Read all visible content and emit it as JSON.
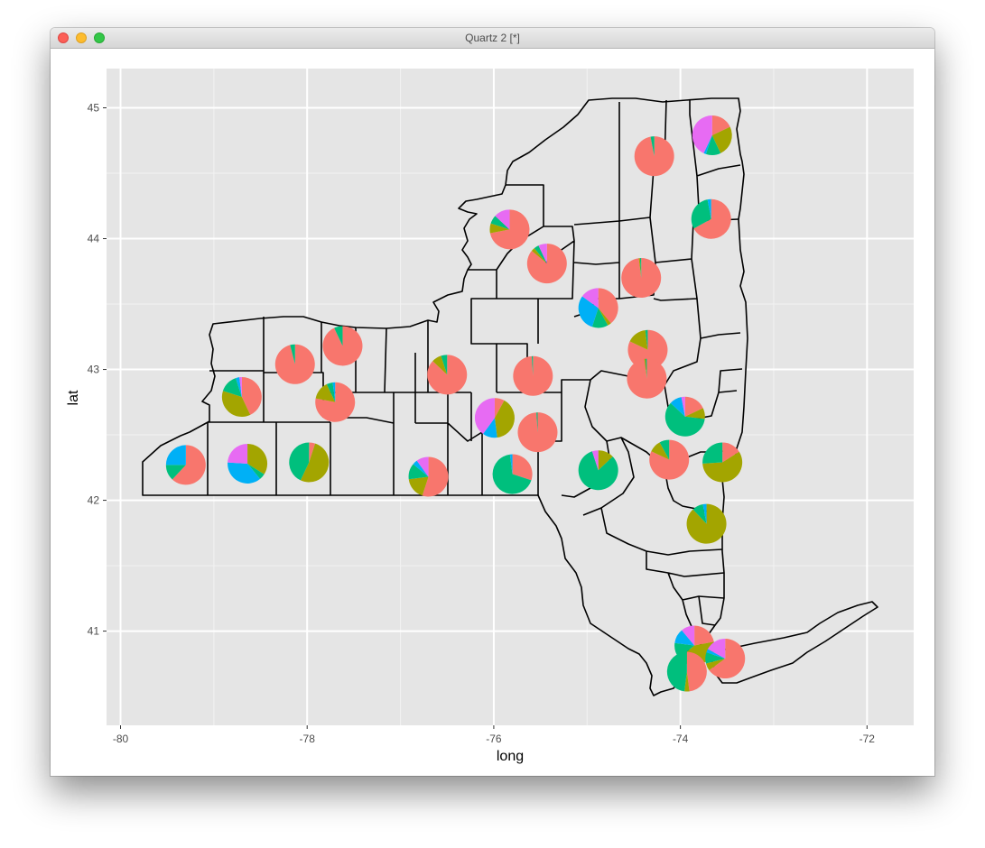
{
  "window": {
    "title": "Quartz 2 [*]"
  },
  "colors": {
    "panel": "#e5e5e5",
    "grid_major": "#ffffff",
    "grid_minor": "#f2f2f2",
    "outline": "#000000"
  },
  "chart_data": {
    "type": "pie",
    "subtype": "pie charts over county map",
    "xlabel": "long",
    "ylabel": "lat",
    "xlim": [
      -80.15,
      -71.5
    ],
    "ylim": [
      40.28,
      45.3
    ],
    "xticks": [
      -80,
      -78,
      -76,
      -74,
      -72
    ],
    "yticks": [
      41,
      42,
      43,
      44,
      45
    ],
    "grid": true,
    "legend": "none",
    "slice_colors": [
      "#F8766D",
      "#A3A500",
      "#00BF7D",
      "#00B0F6",
      "#E76BF3"
    ],
    "pies": [
      {
        "lon": -79.3,
        "lat": 42.27,
        "values": [
          0.62,
          0.0,
          0.13,
          0.25,
          0.0
        ]
      },
      {
        "lon": -78.64,
        "lat": 42.28,
        "values": [
          0.0,
          0.34,
          0.05,
          0.37,
          0.24
        ]
      },
      {
        "lon": -77.98,
        "lat": 42.29,
        "values": [
          0.05,
          0.52,
          0.43,
          0.0,
          0.0
        ]
      },
      {
        "lon": -78.7,
        "lat": 42.79,
        "values": [
          0.43,
          0.37,
          0.15,
          0.03,
          0.02
        ]
      },
      {
        "lon": -78.13,
        "lat": 43.04,
        "values": [
          0.96,
          0.0,
          0.04,
          0.0,
          0.0
        ]
      },
      {
        "lon": -77.7,
        "lat": 42.75,
        "values": [
          0.78,
          0.15,
          0.05,
          0.02,
          0.0
        ]
      },
      {
        "lon": -77.62,
        "lat": 43.18,
        "values": [
          0.93,
          0.0,
          0.07,
          0.0,
          0.0
        ]
      },
      {
        "lon": -76.7,
        "lat": 42.18,
        "values": [
          0.55,
          0.18,
          0.13,
          0.04,
          0.1
        ]
      },
      {
        "lon": -76.5,
        "lat": 42.96,
        "values": [
          0.87,
          0.08,
          0.05,
          0.0,
          0.0
        ]
      },
      {
        "lon": -75.99,
        "lat": 42.63,
        "values": [
          0.08,
          0.4,
          0.0,
          0.12,
          0.4
        ]
      },
      {
        "lon": -75.8,
        "lat": 42.2,
        "values": [
          0.3,
          0.0,
          0.68,
          0.02,
          0.0
        ]
      },
      {
        "lon": -75.58,
        "lat": 42.95,
        "values": [
          0.99,
          0.0,
          0.01,
          0.0,
          0.0
        ]
      },
      {
        "lon": -75.53,
        "lat": 42.52,
        "values": [
          0.99,
          0.0,
          0.01,
          0.0,
          0.0
        ]
      },
      {
        "lon": -75.83,
        "lat": 44.07,
        "values": [
          0.72,
          0.08,
          0.07,
          0.0,
          0.13
        ]
      },
      {
        "lon": -75.43,
        "lat": 43.81,
        "values": [
          0.86,
          0.03,
          0.04,
          0.0,
          0.07
        ]
      },
      {
        "lon": -74.88,
        "lat": 43.47,
        "values": [
          0.39,
          0.03,
          0.13,
          0.3,
          0.15
        ]
      },
      {
        "lon": -74.88,
        "lat": 42.23,
        "values": [
          0.0,
          0.13,
          0.82,
          0.0,
          0.05
        ]
      },
      {
        "lon": -74.42,
        "lat": 43.7,
        "values": [
          0.98,
          0.01,
          0.01,
          0.0,
          0.0
        ]
      },
      {
        "lon": -74.28,
        "lat": 44.63,
        "values": [
          0.97,
          0.0,
          0.03,
          0.0,
          0.0
        ]
      },
      {
        "lon": -74.35,
        "lat": 43.15,
        "values": [
          0.82,
          0.16,
          0.02,
          0.0,
          0.0
        ]
      },
      {
        "lon": -74.36,
        "lat": 42.93,
        "values": [
          0.98,
          0.01,
          0.01,
          0.0,
          0.0
        ]
      },
      {
        "lon": -73.66,
        "lat": 44.79,
        "values": [
          0.18,
          0.25,
          0.12,
          0.02,
          0.43
        ]
      },
      {
        "lon": -73.67,
        "lat": 44.15,
        "values": [
          0.67,
          0.0,
          0.3,
          0.03,
          0.0
        ]
      },
      {
        "lon": -73.95,
        "lat": 42.64,
        "values": [
          0.18,
          0.09,
          0.6,
          0.1,
          0.03
        ]
      },
      {
        "lon": -74.12,
        "lat": 42.31,
        "values": [
          0.82,
          0.1,
          0.08,
          0.0,
          0.0
        ]
      },
      {
        "lon": -73.55,
        "lat": 42.29,
        "values": [
          0.16,
          0.58,
          0.26,
          0.0,
          0.0
        ]
      },
      {
        "lon": -73.72,
        "lat": 41.82,
        "values": [
          0.0,
          0.88,
          0.09,
          0.03,
          0.0
        ]
      },
      {
        "lon": -73.85,
        "lat": 40.89,
        "values": [
          0.22,
          0.42,
          0.13,
          0.12,
          0.11
        ]
      },
      {
        "lon": -73.52,
        "lat": 40.79,
        "values": [
          0.65,
          0.06,
          0.09,
          0.03,
          0.17
        ]
      },
      {
        "lon": -73.93,
        "lat": 40.69,
        "values": [
          0.48,
          0.04,
          0.48,
          0.0,
          0.0
        ]
      }
    ]
  }
}
